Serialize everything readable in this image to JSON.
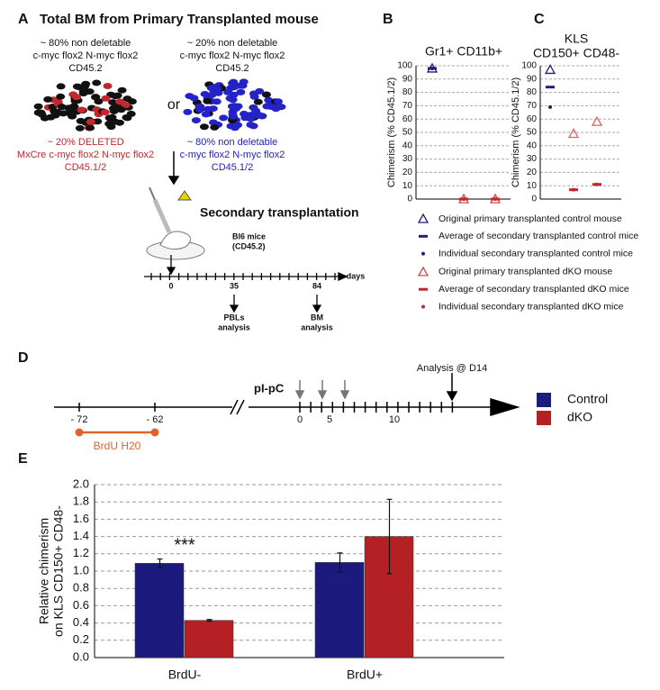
{
  "panel_labels": [
    "A",
    "B",
    "C",
    "D",
    "E"
  ],
  "panel_a": {
    "title": "Total BM from Primary Transplanted mouse",
    "left_text": [
      "~ 80% non deletable",
      "c-myc flox2 N-myc flox2",
      "CD45.2"
    ],
    "right_text": [
      "~ 20% non deletable",
      "c-myc flox2 N-myc flox2",
      "CD45.2"
    ],
    "or": "or",
    "deleted_text": [
      "~ 20% DELETED",
      "MxCre c-myc flox2 N-myc flox2",
      "CD45.1/2"
    ],
    "nondeletable_text": [
      "~ 80% non deletable",
      "c-myc flox2 N-myc flox2",
      "CD45.1/2"
    ],
    "step": "Secondary transplantation",
    "recipient": [
      "Bl6 mice",
      "(CD45.2)"
    ],
    "timeline": {
      "unit": "days",
      "ticks": [
        "0",
        "35",
        "84"
      ],
      "analyses": [
        [
          "PBLs",
          "analysis"
        ],
        [
          "BM",
          "analysis"
        ]
      ]
    }
  },
  "panel_d": {
    "pipc": "pI-pC",
    "analysis": "Analysis @ D14",
    "ticks": [
      "- 72",
      "- 62",
      "0",
      "5",
      "10"
    ],
    "brdu": "BrdU  H20"
  },
  "chart_data": [
    {
      "type": "scatter",
      "title": "Gr1+ CD11b+",
      "y_label": "Chimerism (% CD45.1/2)",
      "categories": [
        null,
        null,
        null
      ],
      "ylim": [
        0,
        100
      ],
      "yticks": [
        0,
        10,
        20,
        30,
        40,
        50,
        60,
        70,
        80,
        90,
        100
      ],
      "grid": true,
      "series": [
        {
          "name": "Original primary transplanted control mouse",
          "color": "#1f1f7a",
          "marker": "open-triangle",
          "values": [
            98,
            null,
            null
          ]
        },
        {
          "name": "Average of secondary transplanted control mice",
          "color": "#1f1f7a",
          "marker": "dash",
          "values": [
            98,
            null,
            null
          ]
        },
        {
          "name": "Individual secondary transplanted control mice",
          "color": "#1f1f7a",
          "marker": "dot",
          "values": [
            98,
            null,
            null
          ]
        },
        {
          "name": "Original primary transplanted dKO mouse",
          "color": "#d9453f",
          "marker": "open-triangle",
          "values": [
            null,
            0,
            0
          ]
        },
        {
          "name": "Average of secondary transplanted dKO mice",
          "color": "#c0282d",
          "marker": "dash",
          "values": [
            null,
            0,
            0
          ]
        },
        {
          "name": "Individual secondary transplanted dKO mice",
          "color": "#c0282d",
          "marker": "dot",
          "values": [
            null,
            0,
            0
          ]
        }
      ]
    },
    {
      "type": "scatter",
      "title": "KLS",
      "subtitle": "CD150+ CD48-",
      "y_label": "Chimerism (% CD45.1/2)",
      "categories": [
        null,
        null,
        null
      ],
      "ylim": [
        0,
        100
      ],
      "yticks": [
        0,
        10,
        20,
        30,
        40,
        50,
        60,
        70,
        80,
        90,
        100
      ],
      "grid": true,
      "series": [
        {
          "color": "#1f1f7a",
          "marker": "open-triangle",
          "values": [
            97,
            null,
            null
          ]
        },
        {
          "color": "#1f1f7a",
          "marker": "dash",
          "values": [
            84,
            null,
            null
          ]
        },
        {
          "color": "#1f1f7a",
          "marker": "dot",
          "values": [
            69,
            null,
            null
          ]
        },
        {
          "color": "#e0605a",
          "marker": "open-triangle",
          "values": [
            null,
            49,
            58
          ]
        },
        {
          "color": "#c0282d",
          "marker": "dash",
          "values": [
            null,
            7,
            11
          ]
        },
        {
          "color": "#c0282d",
          "marker": "dot",
          "values": [
            null,
            7,
            11
          ]
        }
      ]
    },
    {
      "type": "bar",
      "y_label": [
        "Relative chimerism",
        "on KLS CD150+ CD48-"
      ],
      "categories": [
        "BrdU-",
        "BrdU+"
      ],
      "ylim": [
        0,
        2
      ],
      "yticks": [
        {
          "value": 0,
          "label": "0.0"
        },
        {
          "value": 0.2,
          "label": "0.2"
        },
        {
          "value": 0.4,
          "label": "0.4"
        },
        {
          "value": 0.6,
          "label": "0.6"
        },
        {
          "value": 0.8,
          "label": "0.8"
        },
        {
          "value": 1,
          "label": "1.0"
        },
        {
          "value": 1.2,
          "label": "1.2"
        },
        {
          "value": 1.4,
          "label": "1.4"
        },
        {
          "value": 1.6,
          "label": "1.6"
        },
        {
          "value": 1.8,
          "label": "1.8"
        },
        {
          "value": 2,
          "label": "2.0"
        }
      ],
      "grid": true,
      "annotation": "***",
      "series": [
        {
          "name": "Control",
          "color": "#1c1a7c",
          "values": [
            1.09,
            1.1
          ],
          "errors": [
            0.05,
            0.11
          ]
        },
        {
          "name": "dKO",
          "color": "#b52025",
          "values": [
            0.43,
            1.4
          ],
          "errors": [
            0.01,
            0.43
          ]
        }
      ]
    }
  ]
}
